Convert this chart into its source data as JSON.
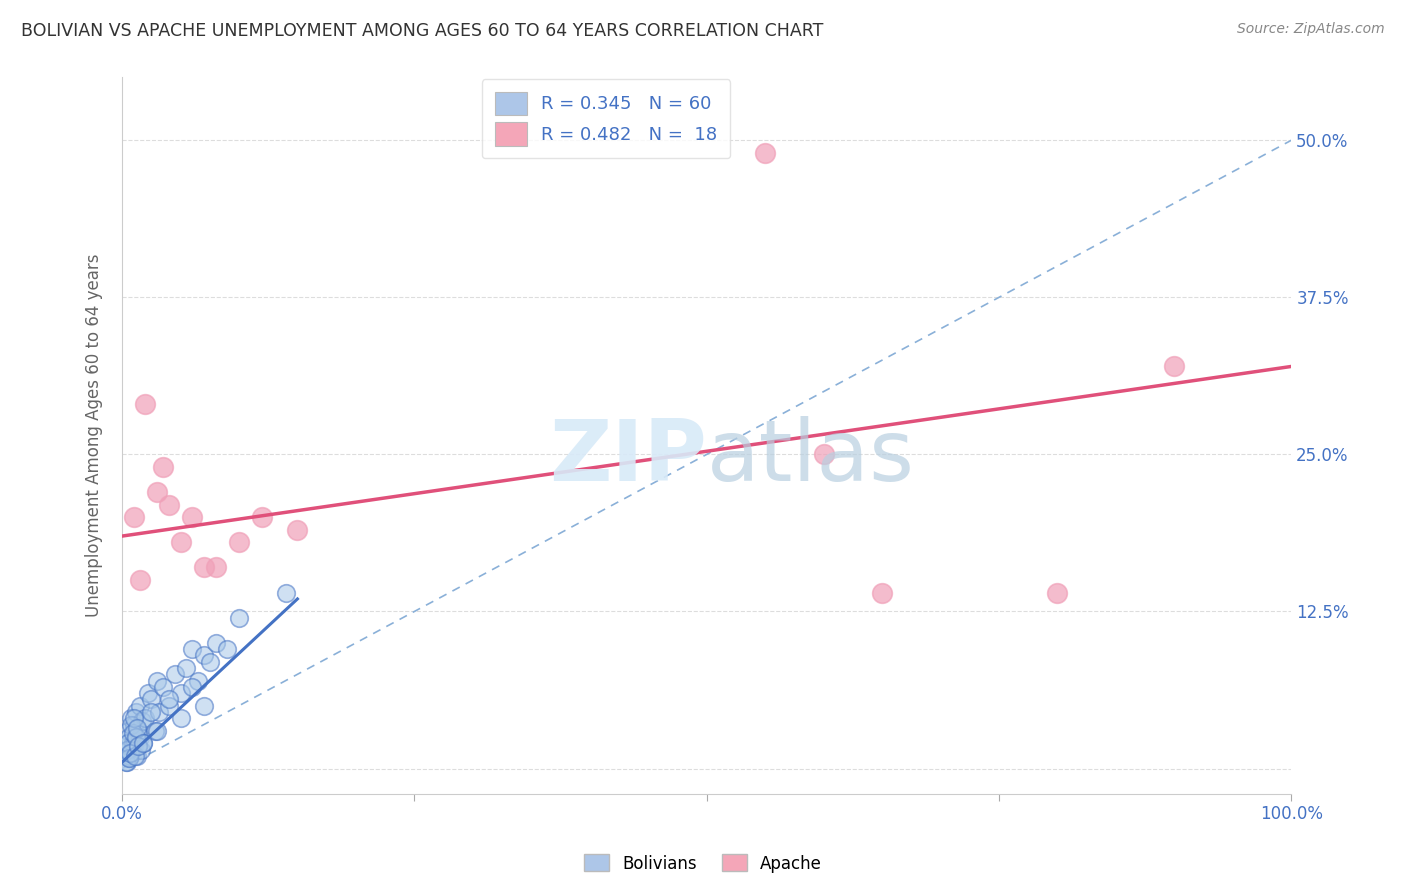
{
  "title": "BOLIVIAN VS APACHE UNEMPLOYMENT AMONG AGES 60 TO 64 YEARS CORRELATION CHART",
  "source": "Source: ZipAtlas.com",
  "ylabel": "Unemployment Among Ages 60 to 64 years",
  "xlim": [
    0,
    100
  ],
  "ylim": [
    -2,
    55
  ],
  "bolivian_R": 0.345,
  "bolivian_N": 60,
  "apache_R": 0.482,
  "apache_N": 18,
  "bolivian_color": "#a8c8e8",
  "apache_color": "#f0a0b8",
  "bolivian_line_color": "#4472c4",
  "apache_line_color": "#e0507a",
  "legend_box_blue": "#adc6e8",
  "legend_box_pink": "#f4a6b8",
  "legend_text_color": "#4472c4",
  "background_color": "#ffffff",
  "bolivian_x": [
    0.2,
    0.3,
    0.4,
    0.5,
    0.5,
    0.6,
    0.6,
    0.7,
    0.8,
    0.8,
    0.9,
    1.0,
    1.0,
    1.1,
    1.2,
    1.3,
    1.4,
    1.5,
    1.5,
    1.6,
    1.7,
    1.8,
    2.0,
    2.2,
    2.5,
    2.8,
    3.0,
    3.2,
    3.5,
    4.0,
    4.5,
    5.0,
    5.5,
    6.0,
    6.5,
    7.0,
    7.5,
    8.0,
    9.0,
    10.0,
    0.3,
    0.4,
    0.5,
    0.6,
    0.7,
    0.8,
    0.9,
    1.0,
    1.1,
    1.2,
    1.3,
    1.4,
    1.8,
    2.5,
    3.0,
    4.0,
    5.0,
    6.0,
    7.0,
    14.0
  ],
  "bolivian_y": [
    1.0,
    2.0,
    0.5,
    3.0,
    1.5,
    2.5,
    0.8,
    1.0,
    4.0,
    1.2,
    2.0,
    3.5,
    1.8,
    2.2,
    4.5,
    1.0,
    3.0,
    5.0,
    2.5,
    1.5,
    3.8,
    2.0,
    4.0,
    6.0,
    5.5,
    3.0,
    7.0,
    4.5,
    6.5,
    5.0,
    7.5,
    6.0,
    8.0,
    9.5,
    7.0,
    9.0,
    8.5,
    10.0,
    9.5,
    12.0,
    0.5,
    1.5,
    2.0,
    0.8,
    1.2,
    3.5,
    2.8,
    4.0,
    1.0,
    2.5,
    3.2,
    1.8,
    2.0,
    4.5,
    3.0,
    5.5,
    4.0,
    6.5,
    5.0,
    14.0
  ],
  "apache_x": [
    1.0,
    2.0,
    3.0,
    4.0,
    5.0,
    6.0,
    8.0,
    10.0,
    12.0,
    15.0,
    55.0,
    60.0,
    65.0,
    80.0,
    90.0,
    1.5,
    3.5,
    7.0
  ],
  "apache_y": [
    20.0,
    29.0,
    22.0,
    21.0,
    18.0,
    20.0,
    16.0,
    18.0,
    20.0,
    19.0,
    49.0,
    25.0,
    14.0,
    14.0,
    32.0,
    15.0,
    24.0,
    16.0
  ],
  "apache_line_x0": 0,
  "apache_line_y0": 18.5,
  "apache_line_x1": 100,
  "apache_line_y1": 32.0,
  "boli_line_x0": 0,
  "boli_line_y0": 0.5,
  "boli_line_x1": 15,
  "boli_line_y1": 13.5,
  "dash_line_x0": 0,
  "dash_line_y0": 0,
  "dash_line_x1": 100,
  "dash_line_y1": 50
}
